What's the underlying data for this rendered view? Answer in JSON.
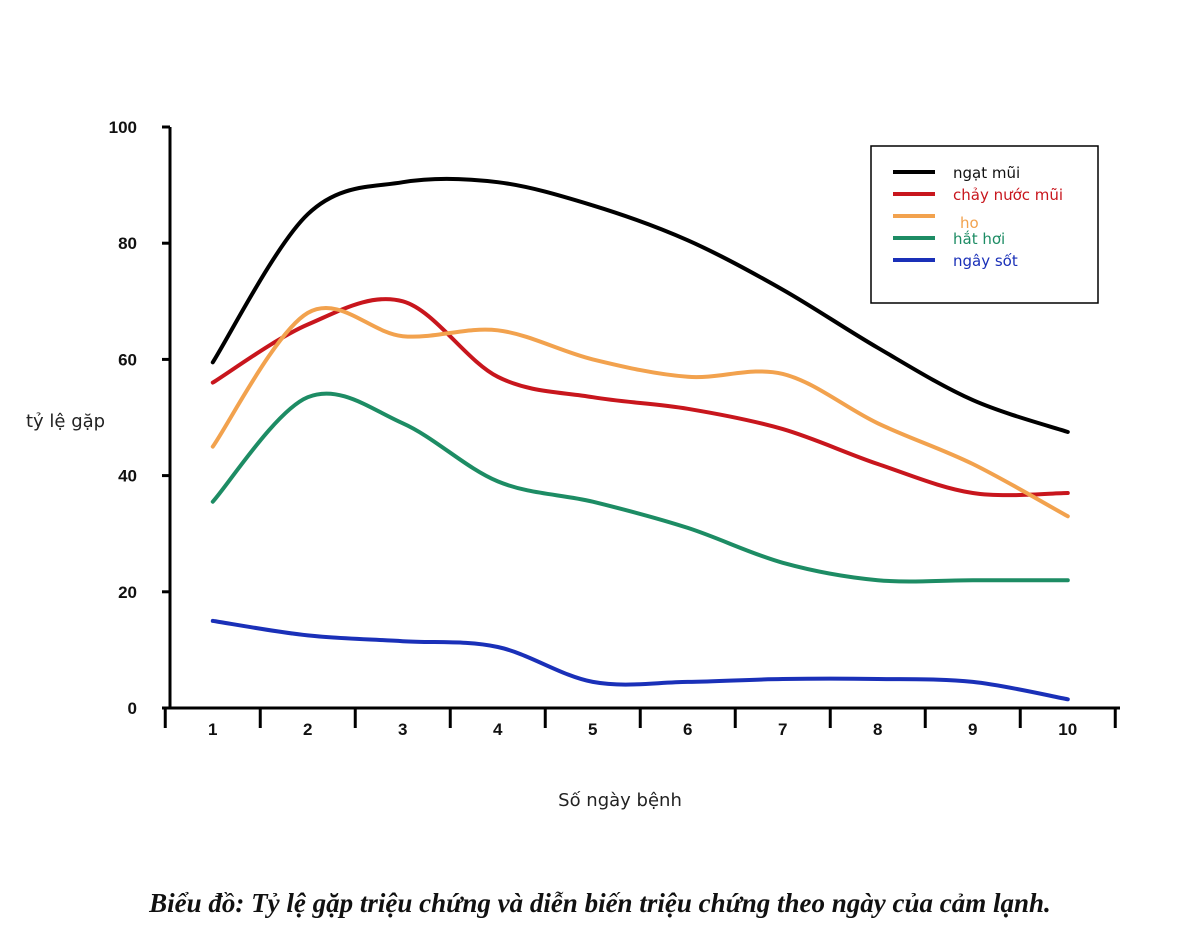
{
  "chart_data": {
    "type": "line",
    "title": "Biểu đồ: Tỷ lệ gặp triệu chứng và diễn biến triệu chứng theo ngày của cảm lạnh.",
    "xlabel": "Số ngày bệnh",
    "ylabel": "tỷ lệ gặp",
    "x": [
      1,
      2,
      3,
      4,
      5,
      6,
      7,
      8,
      9,
      10
    ],
    "xlim": [
      0.55,
      10.55
    ],
    "ylim": [
      0,
      100
    ],
    "yticks": [
      0,
      20,
      40,
      60,
      80,
      100
    ],
    "grid": false,
    "legend_position": "top-right",
    "series": [
      {
        "name": "ngạt mũi",
        "color": "#000000",
        "values": [
          59.5,
          85,
          90.5,
          90.5,
          86.5,
          80.5,
          72,
          62,
          53,
          47.5
        ]
      },
      {
        "name": "chảy nước mũi",
        "color": "#c8161d",
        "values": [
          56,
          66,
          70,
          57,
          53.5,
          51.5,
          48,
          42,
          37,
          37
        ]
      },
      {
        "name": "ho",
        "color": "#f2a24e",
        "values": [
          45,
          68,
          64,
          65,
          60,
          57,
          57.5,
          49,
          42,
          33
        ]
      },
      {
        "name": "hắt hơi",
        "color": "#1d8c64",
        "values": [
          35.5,
          53.5,
          49,
          39,
          35.5,
          31,
          25,
          22,
          22,
          22
        ]
      },
      {
        "name": "ngây sốt",
        "color": "#1a30b8",
        "values": [
          15,
          12.5,
          11.5,
          10.5,
          4.5,
          4.5,
          5,
          5,
          4.5,
          1.5
        ]
      }
    ]
  }
}
